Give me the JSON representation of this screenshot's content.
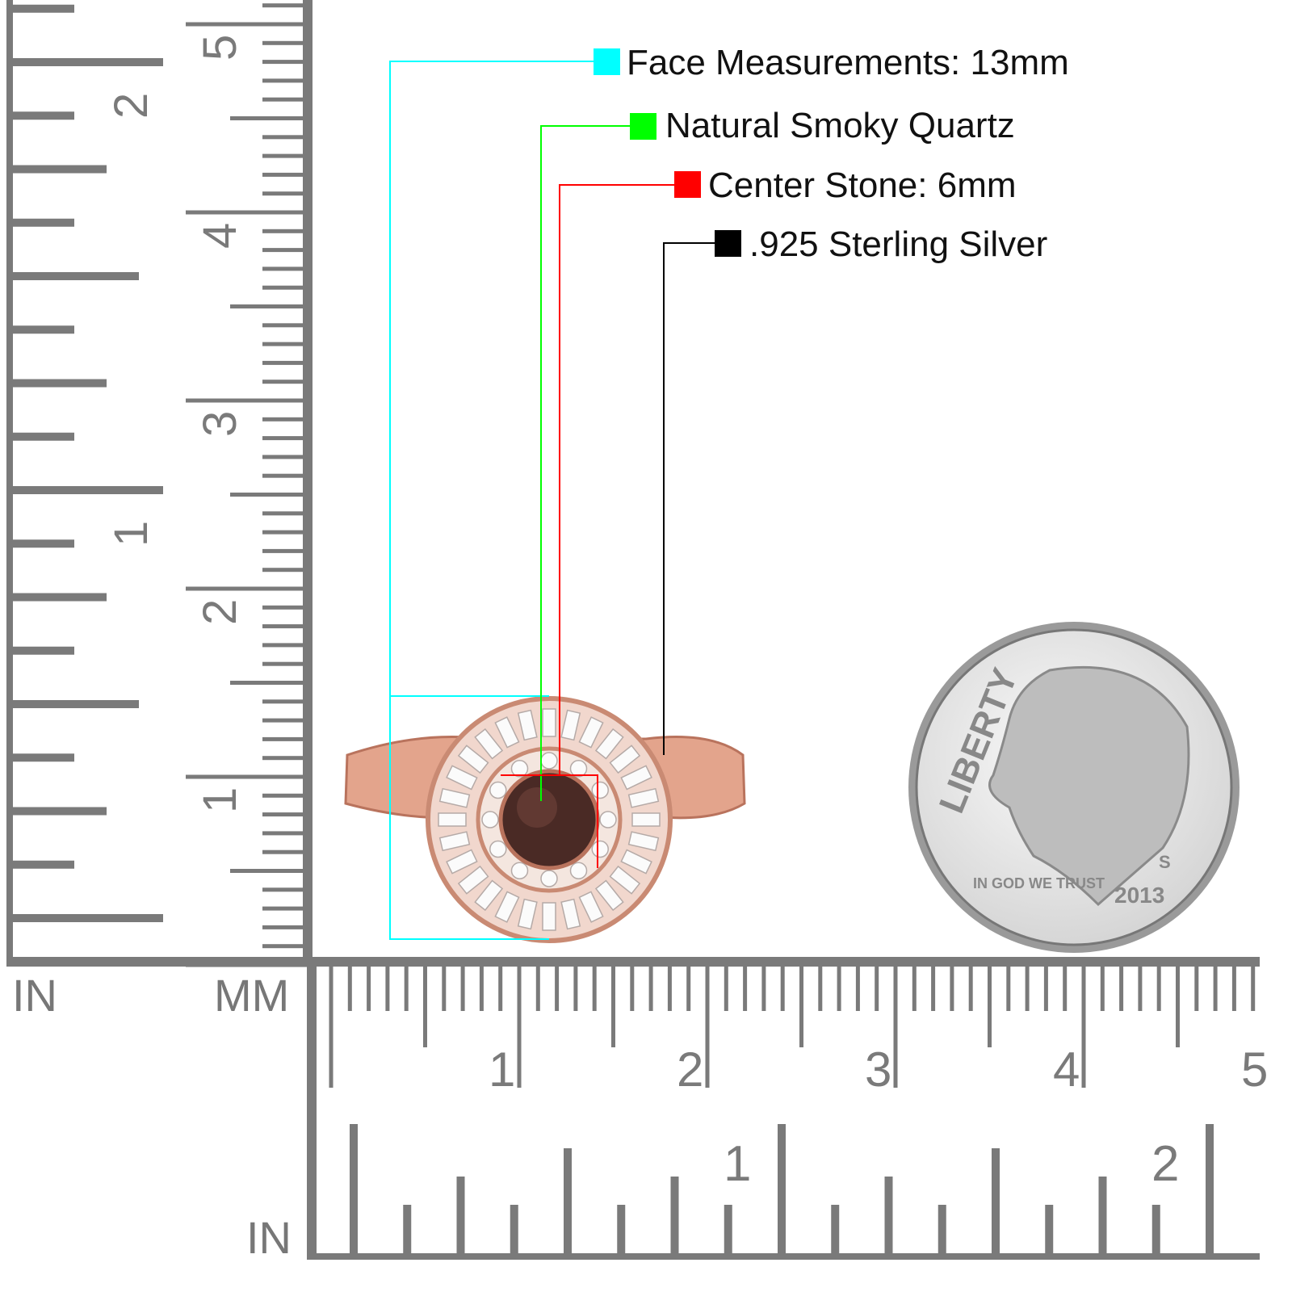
{
  "legend": [
    {
      "label": "Face Measurements: 13mm",
      "color": "#00ffff"
    },
    {
      "label": "Natural Smoky Quartz",
      "color": "#00ff00"
    },
    {
      "label": "Center Stone: 6mm",
      "color": "#ff0000"
    },
    {
      "label": ".925 Sterling Silver",
      "color": "#000000"
    }
  ],
  "rulers": {
    "vertical_in_unit": "IN",
    "vertical_mm_unit": "MM",
    "bottom_in_unit": "IN",
    "vertical_cm_labels": [
      "1",
      "2",
      "3",
      "4",
      "5"
    ],
    "vertical_in_labels": [
      "1",
      "2"
    ],
    "bottom_cm_labels": [
      "1",
      "2",
      "3",
      "4",
      "5"
    ],
    "bottom_in_labels": [
      "1",
      "2"
    ],
    "ruler_color": "#7a7a7a"
  },
  "coin": {
    "motto": "LIBERTY",
    "trust": "IN GOD WE TRUST",
    "year": "2013",
    "mint": "S"
  },
  "ring": {
    "metal_color": "#e3a48c",
    "stone_color": "#4a2a25"
  }
}
